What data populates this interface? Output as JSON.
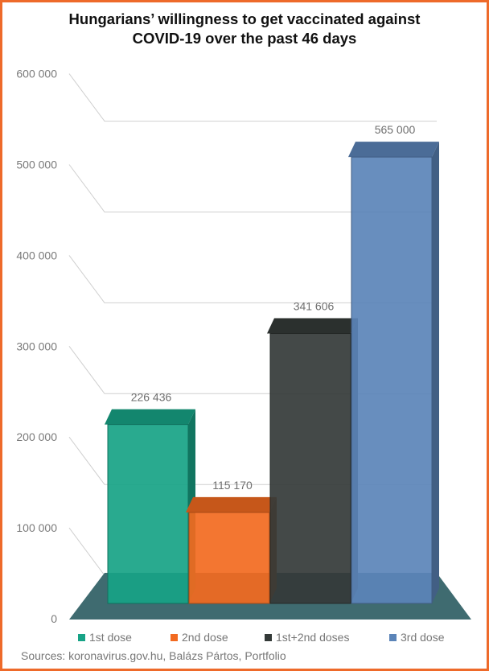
{
  "title_lines": [
    "Hungarians’ willingness to get vaccinated against",
    "COVID-19 over the past 46 days"
  ],
  "source": "Sources: koronavirus.gov.hu, Balázs Pártos, Portfolio",
  "colors": {
    "frame": "#ee6a2a",
    "floor": "#3f6b70",
    "grid": "#cfcfcf"
  },
  "chart_data": {
    "type": "bar",
    "categories": [
      "1st dose",
      "2nd dose",
      "1st+2nd doses",
      "3rd dose"
    ],
    "values": [
      226436,
      115170,
      341606,
      565000
    ],
    "data_labels": [
      "226 436",
      "115 170",
      "341 606",
      "565 000"
    ],
    "series_colors": [
      "#17a386",
      "#f26a20",
      "#343a38",
      "#5b84b8"
    ],
    "ylim": [
      0,
      600000
    ],
    "yticks": [
      0,
      100000,
      200000,
      300000,
      400000,
      500000,
      600000
    ],
    "ytick_labels": [
      "0",
      "100 000",
      "200 000",
      "300 000",
      "400 000",
      "500 000",
      "600 000"
    ],
    "grid": true,
    "legend_position": "bottom",
    "style": "3d"
  }
}
